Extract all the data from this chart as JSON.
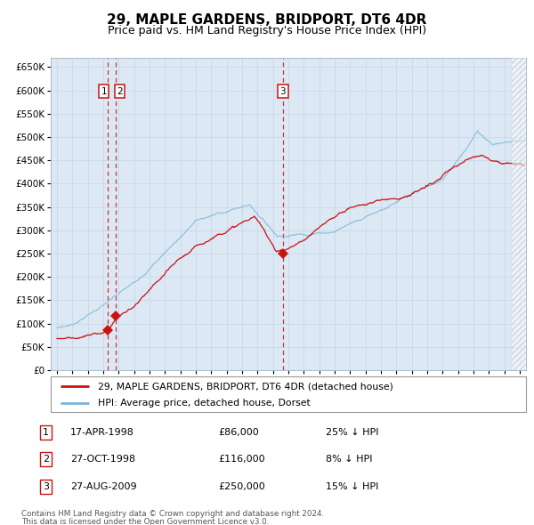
{
  "title": "29, MAPLE GARDENS, BRIDPORT, DT6 4DR",
  "subtitle": "Price paid vs. HM Land Registry's House Price Index (HPI)",
  "title_fontsize": 11,
  "subtitle_fontsize": 9,
  "background_color": "#ffffff",
  "plot_bg_color": "#dce9f5",
  "grid_color": "#c8d8e8",
  "ylim": [
    0,
    670000
  ],
  "yticks": [
    0,
    50000,
    100000,
    150000,
    200000,
    250000,
    300000,
    350000,
    400000,
    450000,
    500000,
    550000,
    600000,
    650000
  ],
  "xlim_start": 1994.6,
  "xlim_end": 2025.4,
  "hpi_line_color": "#7ab4d8",
  "price_line_color": "#cc1111",
  "sale_marker_color": "#cc1111",
  "vline_color": "#cc1111",
  "transactions": [
    {
      "label": "1",
      "date_str": "17-APR-1998",
      "year": 1998.29,
      "price": 86000,
      "pct": "25%",
      "dir": "↓"
    },
    {
      "label": "2",
      "date_str": "27-OCT-1998",
      "year": 1998.82,
      "price": 116000,
      "pct": "8%",
      "dir": "↓"
    },
    {
      "label": "3",
      "date_str": "27-AUG-2009",
      "year": 2009.65,
      "price": 250000,
      "pct": "15%",
      "dir": "↓"
    }
  ],
  "legend_line1": "29, MAPLE GARDENS, BRIDPORT, DT6 4DR (detached house)",
  "legend_line2": "HPI: Average price, detached house, Dorset",
  "footnote1": "Contains HM Land Registry data © Crown copyright and database right 2024.",
  "footnote2": "This data is licensed under the Open Government Licence v3.0.",
  "hatch_region_start": 2024.5,
  "row_data": [
    [
      "1",
      "17-APR-1998",
      "£86,000",
      "25% ↓ HPI"
    ],
    [
      "2",
      "27-OCT-1998",
      "£116,000",
      "8% ↓ HPI"
    ],
    [
      "3",
      "27-AUG-2009",
      "£250,000",
      "15% ↓ HPI"
    ]
  ]
}
